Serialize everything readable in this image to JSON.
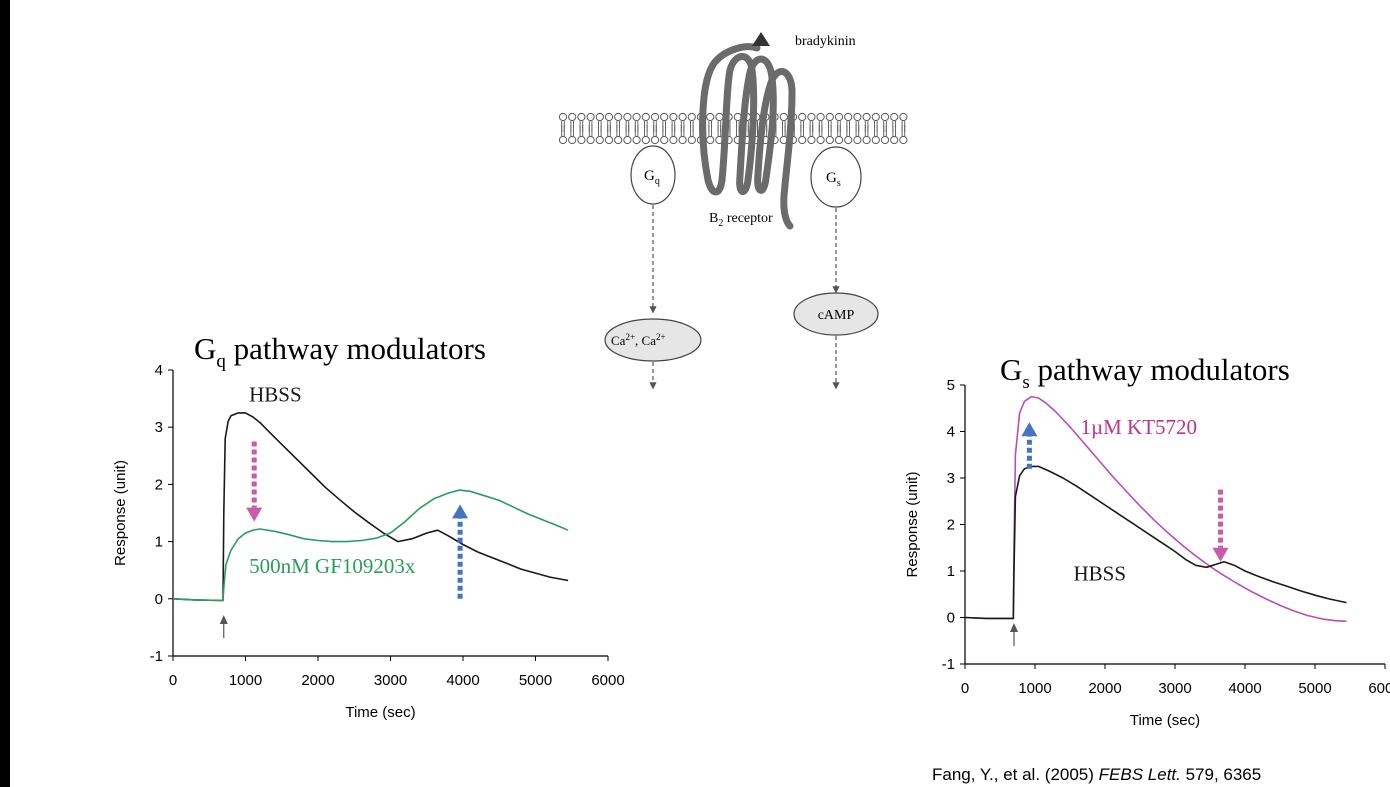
{
  "diagram": {
    "ligand_label": "bradykinin",
    "receptor_label": "B",
    "receptor_sub": "2",
    "receptor_suffix": " receptor",
    "gq_label": "G",
    "gq_sub": "q",
    "gs_label": "G",
    "gs_sub": "s",
    "ca_label": "Ca",
    "ca_sup": "2+",
    "ca_sep": ", Ca",
    "ca_sup2": "2+",
    "camp_label": "cAMP"
  },
  "citation": {
    "authors": "Fang, Y., et al. (2005) ",
    "journal": "FEBS Lett.",
    "volume": " 579, 6365"
  },
  "chart_data": [
    {
      "type": "line",
      "title_main": "G",
      "title_sub": "q",
      "title_rest": " pathway modulators",
      "xlabel": "Time (sec)",
      "ylabel": "Response (unit)",
      "xlim": [
        0,
        6000
      ],
      "ylim": [
        -1,
        4
      ],
      "xticks": [
        "0",
        "1000",
        "2000",
        "3000",
        "4000",
        "5000",
        "6000"
      ],
      "yticks": [
        "-1",
        "0",
        "1",
        "2",
        "3",
        "4"
      ],
      "series": [
        {
          "name": "HBSS",
          "color": "#1a1a1a",
          "x": [
            0,
            300,
            690,
            700,
            720,
            760,
            800,
            900,
            1000,
            1100,
            1200,
            1300,
            1500,
            1700,
            1900,
            2100,
            2300,
            2500,
            2700,
            2900,
            3100,
            3300,
            3500,
            3650,
            3800,
            4000,
            4200,
            4400,
            4600,
            4800,
            5000,
            5200,
            5450
          ],
          "y": [
            0,
            -0.02,
            -0.03,
            1.5,
            2.8,
            3.1,
            3.2,
            3.25,
            3.25,
            3.18,
            3.08,
            2.95,
            2.7,
            2.45,
            2.2,
            1.95,
            1.73,
            1.52,
            1.33,
            1.15,
            1.0,
            1.05,
            1.15,
            1.2,
            1.1,
            0.95,
            0.82,
            0.72,
            0.62,
            0.52,
            0.45,
            0.38,
            0.32
          ]
        },
        {
          "name": "500nM GF109203x",
          "color": "#2a9d5c",
          "x": [
            0,
            300,
            690,
            700,
            730,
            800,
            900,
            1000,
            1100,
            1200,
            1400,
            1600,
            1800,
            2000,
            2200,
            2400,
            2600,
            2800,
            3000,
            3200,
            3400,
            3600,
            3800,
            3950,
            4100,
            4300,
            4500,
            4700,
            4900,
            5100,
            5300,
            5450
          ],
          "y": [
            0,
            -0.02,
            -0.03,
            0.2,
            0.6,
            0.85,
            1.05,
            1.15,
            1.2,
            1.22,
            1.18,
            1.12,
            1.05,
            1.02,
            1.0,
            1.0,
            1.02,
            1.06,
            1.15,
            1.35,
            1.58,
            1.75,
            1.85,
            1.9,
            1.88,
            1.8,
            1.72,
            1.6,
            1.48,
            1.38,
            1.28,
            1.2
          ]
        }
      ],
      "labels": [
        {
          "text": "HBSS",
          "x": 1050,
          "y": 3.45,
          "color": "#1a1a1a"
        },
        {
          "text": "500nM GF109203x",
          "x": 1050,
          "y": 0.45,
          "color": "#2a9d5c"
        }
      ],
      "arrows": [
        {
          "direction": "down",
          "color": "#c85ca8",
          "x": 1120,
          "y_from": 2.75,
          "y_to": 1.35
        },
        {
          "direction": "up",
          "color": "#4472c4",
          "x": 3960,
          "y_from": 0.0,
          "y_to": 1.65
        }
      ],
      "injection_x": 700
    },
    {
      "type": "line",
      "title_main": "G",
      "title_sub": "s",
      "title_rest": " pathway modulators",
      "xlabel": "Time (sec)",
      "ylabel": "Response (unit)",
      "xlim": [
        0,
        6000
      ],
      "ylim": [
        -1,
        5
      ],
      "xticks": [
        "0",
        "1000",
        "2000",
        "3000",
        "4000",
        "5000",
        "6000"
      ],
      "yticks": [
        "-1",
        "0",
        "1",
        "2",
        "3",
        "4",
        "5"
      ],
      "series": [
        {
          "name": "1µM KT5720",
          "color": "#b84fb5",
          "x": [
            0,
            300,
            690,
            700,
            720,
            780,
            850,
            950,
            1050,
            1150,
            1300,
            1500,
            1700,
            1900,
            2100,
            2300,
            2500,
            2700,
            2900,
            3100,
            3300,
            3500,
            3700,
            3900,
            4100,
            4300,
            4500,
            4700,
            4900,
            5100,
            5300,
            5450
          ],
          "y": [
            0,
            -0.02,
            -0.02,
            1.5,
            3.5,
            4.4,
            4.65,
            4.75,
            4.72,
            4.62,
            4.42,
            4.1,
            3.75,
            3.4,
            3.05,
            2.72,
            2.4,
            2.1,
            1.82,
            1.56,
            1.32,
            1.1,
            0.9,
            0.72,
            0.55,
            0.4,
            0.26,
            0.14,
            0.04,
            -0.03,
            -0.07,
            -0.08
          ]
        },
        {
          "name": "HBSS",
          "color": "#1a1a1a",
          "x": [
            0,
            300,
            690,
            700,
            720,
            780,
            850,
            950,
            1050,
            1200,
            1400,
            1600,
            1800,
            2000,
            2200,
            2400,
            2600,
            2800,
            3000,
            3150,
            3300,
            3450,
            3600,
            3700,
            3850,
            4000,
            4200,
            4400,
            4600,
            4800,
            5000,
            5200,
            5450
          ],
          "y": [
            0,
            -0.02,
            -0.02,
            1.0,
            2.6,
            3.05,
            3.2,
            3.25,
            3.25,
            3.15,
            3.0,
            2.82,
            2.62,
            2.42,
            2.22,
            2.02,
            1.82,
            1.62,
            1.42,
            1.25,
            1.12,
            1.08,
            1.15,
            1.2,
            1.12,
            1.0,
            0.88,
            0.77,
            0.67,
            0.57,
            0.48,
            0.4,
            0.32
          ]
        }
      ],
      "labels": [
        {
          "text": "1µM KT5720",
          "x": 1650,
          "y": 3.95,
          "color": "#c0348a"
        },
        {
          "text": "HBSS",
          "x": 1550,
          "y": 0.8,
          "color": "#1a1a1a"
        }
      ],
      "arrows": [
        {
          "direction": "up",
          "color": "#4472c4",
          "x": 920,
          "y_from": 3.2,
          "y_to": 4.2
        },
        {
          "direction": "down",
          "color": "#c85ca8",
          "x": 3650,
          "y_from": 2.75,
          "y_to": 1.2
        }
      ],
      "injection_x": 700
    }
  ]
}
